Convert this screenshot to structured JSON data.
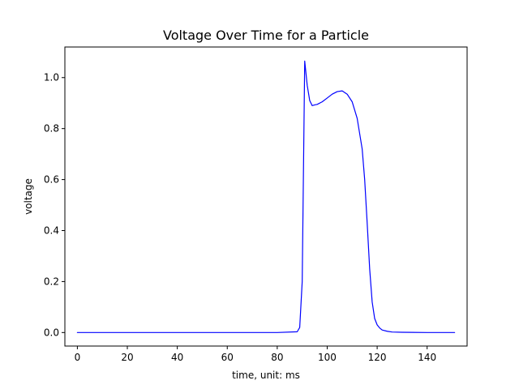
{
  "chart_data": {
    "type": "line",
    "title": "Voltage Over Time for a Particle",
    "xlabel": "time, unit: ms",
    "ylabel": "voltage",
    "xlim": [
      -5,
      156
    ],
    "ylim": [
      -0.053,
      1.12
    ],
    "xticks": [
      0,
      20,
      40,
      60,
      80,
      100,
      120,
      140
    ],
    "xtick_labels": [
      "0",
      "20",
      "40",
      "60",
      "80",
      "100",
      "120",
      "140"
    ],
    "yticks": [
      0.0,
      0.2,
      0.4,
      0.6,
      0.8,
      1.0
    ],
    "ytick_labels": [
      "0.0",
      "0.2",
      "0.4",
      "0.6",
      "0.8",
      "1.0"
    ],
    "grid": false,
    "series": [
      {
        "color": "#0000ff",
        "x": [
          0,
          10,
          20,
          30,
          40,
          50,
          60,
          70,
          80,
          88,
          89,
          90,
          91,
          92,
          93,
          94,
          95,
          96,
          98,
          100,
          102,
          104,
          106,
          108,
          110,
          112,
          114,
          115,
          116,
          117,
          118,
          119,
          120,
          121,
          122,
          124,
          126,
          130,
          140,
          151
        ],
        "y": [
          0,
          0,
          0,
          0,
          0,
          0,
          0,
          0,
          0,
          0.003,
          0.02,
          0.2,
          1.065,
          0.97,
          0.91,
          0.89,
          0.893,
          0.895,
          0.905,
          0.92,
          0.935,
          0.945,
          0.948,
          0.935,
          0.905,
          0.84,
          0.72,
          0.6,
          0.43,
          0.25,
          0.12,
          0.055,
          0.03,
          0.018,
          0.01,
          0.005,
          0.002,
          0.001,
          0,
          0
        ]
      }
    ]
  }
}
